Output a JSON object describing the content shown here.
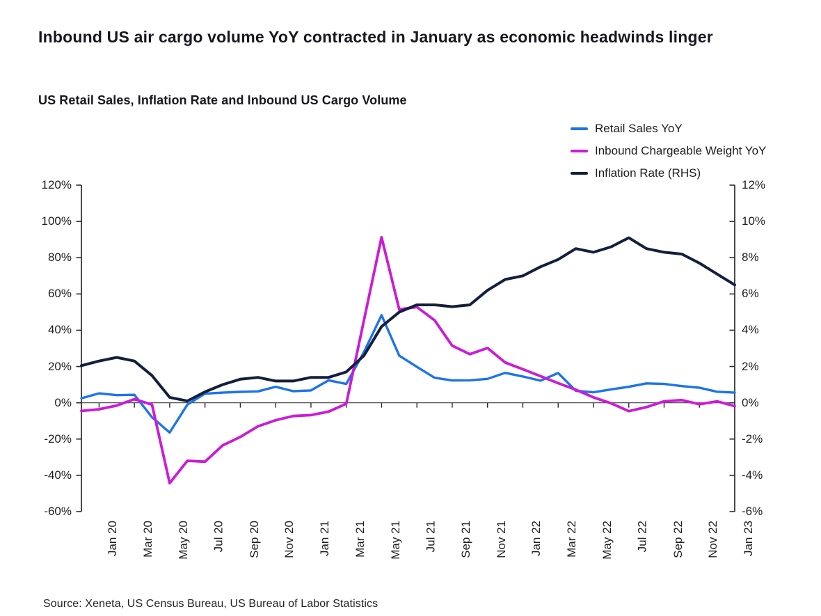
{
  "header": {
    "title": "Inbound US air cargo volume YoY contracted in January as economic headwinds linger",
    "subtitle": "US Retail Sales, Inflation Rate and Inbound US Cargo Volume"
  },
  "legend": {
    "items": [
      {
        "label": "Retail Sales YoY",
        "color": "#1d74e9"
      },
      {
        "label": "Inbound Chargeable Weight YoY",
        "color": "#cb1bd7"
      },
      {
        "label": "Inflation Rate (RHS)",
        "color": "#141f3d"
      }
    ]
  },
  "axes": {
    "left_labels": [
      "120%",
      "100%",
      "80%",
      "60%",
      "40%",
      "20%",
      "0%",
      "-20%",
      "-40%",
      "-60%"
    ],
    "right_labels": [
      "12%",
      "10%",
      "8%",
      "6%",
      "4%",
      "2%",
      "0%",
      "-2%",
      "-4%",
      "-6%"
    ],
    "x_labels": [
      "Jan 20",
      "Mar 20",
      "May 20",
      "Jul 20",
      "Sep 20",
      "Nov 20",
      "Jan 21",
      "Mar 21",
      "May 21",
      "Jul 21",
      "Sep 21",
      "Nov 21",
      "Jan 22",
      "Mar 22",
      "May 22",
      "Jul 22",
      "Sep 22",
      "Nov 22",
      "Jan 23"
    ]
  },
  "source_note": "Source: Xeneta, US Census Bureau, US Bureau of Labor Statistics",
  "colors": {
    "retail_blue": "#1d74e9",
    "weight_magenta": "#cb1bd7",
    "inflation_navy": "#141f3d",
    "axis": "#2a2a2a",
    "zero_line": "#3a3a3a",
    "text": "#1c1c1e"
  },
  "chart_data": {
    "type": "line",
    "title": "Inbound US air cargo volume YoY contracted in January as economic headwinds linger",
    "subtitle": "US Retail Sales, Inflation Rate and Inbound US Cargo Volume",
    "x": [
      "Dec 19",
      "Jan 20",
      "Feb 20",
      "Mar 20",
      "Apr 20",
      "May 20",
      "Jun 20",
      "Jul 20",
      "Aug 20",
      "Sep 20",
      "Oct 20",
      "Nov 20",
      "Dec 20",
      "Jan 21",
      "Feb 21",
      "Mar 21",
      "Apr 21",
      "May 21",
      "Jun 21",
      "Jul 21",
      "Aug 21",
      "Sep 21",
      "Oct 21",
      "Nov 21",
      "Dec 21",
      "Jan 22",
      "Feb 22",
      "Mar 22",
      "Apr 22",
      "May 22",
      "Jun 22",
      "Jul 22",
      "Aug 22",
      "Sep 22",
      "Oct 22",
      "Nov 22",
      "Dec 22",
      "Jan 23"
    ],
    "x_tick_labels": [
      "Jan 20",
      "Mar 20",
      "May 20",
      "Jul 20",
      "Sep 20",
      "Nov 20",
      "Jan 21",
      "Mar 21",
      "May 21",
      "Jul 21",
      "Sep 21",
      "Nov 21",
      "Jan 22",
      "Mar 22",
      "May 22",
      "Jul 22",
      "Sep 22",
      "Nov 22",
      "Jan 23"
    ],
    "series": [
      {
        "name": "Retail Sales YoY",
        "axis": "left",
        "unit": "%",
        "color": "#1d74e9",
        "values": [
          2.5,
          5.2,
          4.2,
          4.4,
          -8.0,
          -16.4,
          -1.0,
          5.0,
          5.6,
          6.0,
          6.3,
          8.8,
          6.4,
          6.8,
          12.4,
          10.4,
          28.0,
          48.3,
          26.0,
          19.8,
          13.8,
          12.3,
          12.4,
          13.2,
          16.5,
          14.5,
          12.2,
          16.4,
          6.6,
          5.8,
          7.4,
          8.8,
          10.7,
          10.4,
          9.2,
          8.3,
          6.1,
          5.6
        ]
      },
      {
        "name": "Inbound Chargeable Weight YoY",
        "axis": "left",
        "unit": "%",
        "color": "#cb1bd7",
        "values": [
          -4.5,
          -3.6,
          -1.5,
          2.0,
          -1.0,
          -44.3,
          -32.0,
          -32.5,
          -23.5,
          -18.8,
          -13.0,
          -9.6,
          -7.3,
          -6.8,
          -4.9,
          -0.5,
          45.5,
          91.3,
          51.5,
          52.8,
          45.5,
          31.5,
          26.8,
          30.2,
          22.2,
          18.5,
          14.7,
          10.8,
          7.2,
          3.0,
          -0.3,
          -4.6,
          -2.4,
          0.8,
          1.5,
          -0.8,
          0.8,
          -1.8
        ]
      },
      {
        "name": "Inflation Rate (RHS)",
        "axis": "right",
        "unit": "%",
        "color": "#141f3d",
        "values": [
          2.05,
          2.3,
          2.5,
          2.3,
          1.5,
          0.3,
          0.1,
          0.6,
          1.0,
          1.3,
          1.4,
          1.2,
          1.2,
          1.4,
          1.4,
          1.7,
          2.6,
          4.2,
          5.0,
          5.4,
          5.4,
          5.3,
          5.4,
          6.2,
          6.8,
          7.0,
          7.5,
          7.9,
          8.5,
          8.3,
          8.6,
          9.1,
          8.5,
          8.3,
          8.2,
          7.7,
          7.1,
          6.5
        ]
      }
    ],
    "left_axis": {
      "min": -60,
      "max": 120,
      "step": 20,
      "format": "percent"
    },
    "right_axis": {
      "min": -6,
      "max": 12,
      "step": 2,
      "format": "percent"
    },
    "grid": false,
    "zero_line": true,
    "legend_position": "top-right"
  }
}
